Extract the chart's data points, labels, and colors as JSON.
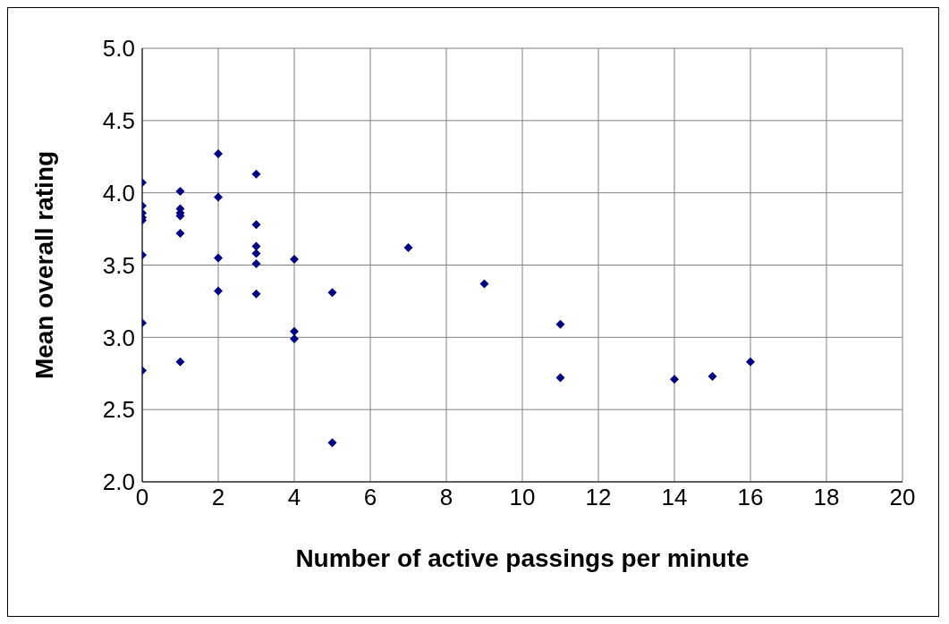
{
  "chart_data": {
    "type": "scatter",
    "xlabel": "Number of active passings per minute",
    "ylabel": "Mean overall rating",
    "x": [
      0,
      0,
      0,
      0,
      0,
      0,
      0,
      0,
      1,
      1,
      1,
      1,
      1,
      1,
      2,
      2,
      2,
      2,
      3,
      3,
      3,
      3,
      3,
      3,
      4,
      4,
      4,
      5,
      5,
      7,
      9,
      11,
      11,
      14,
      15,
      16
    ],
    "values": [
      4.07,
      3.91,
      3.86,
      3.83,
      3.81,
      3.57,
      3.1,
      2.77,
      4.01,
      3.89,
      3.86,
      3.84,
      3.72,
      2.83,
      4.27,
      3.97,
      3.55,
      3.32,
      4.13,
      3.78,
      3.63,
      3.58,
      3.51,
      3.3,
      3.54,
      3.04,
      2.99,
      3.31,
      2.27,
      3.62,
      3.37,
      3.09,
      2.72,
      2.71,
      2.73,
      2.83
    ],
    "color": "#000080",
    "marker": "diamond",
    "grid": true,
    "legend": false,
    "xlim": [
      0,
      20
    ],
    "xticks": [
      0,
      2,
      4,
      6,
      8,
      10,
      12,
      14,
      16,
      18,
      20
    ],
    "ylim": [
      2,
      5
    ],
    "yticks": [
      {
        "value": 2,
        "label": "2.0"
      },
      2.5,
      {
        "value": 3,
        "label": "3.0"
      },
      3.5,
      {
        "value": 4,
        "label": "4.0"
      },
      4.5,
      {
        "value": 5,
        "label": "5.0"
      }
    ]
  }
}
